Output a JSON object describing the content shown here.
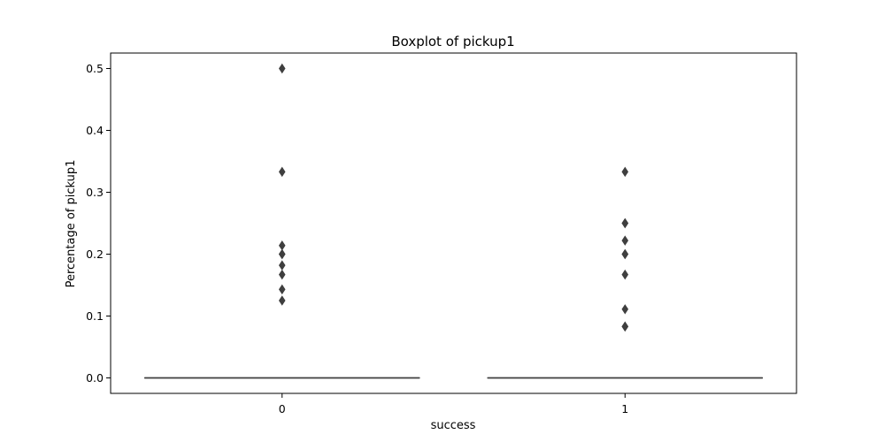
{
  "chart_data": {
    "type": "box",
    "title": "Boxplot of pickup1",
    "xlabel": "success",
    "ylabel": "Percentage of pickup1",
    "categories": [
      "0",
      "1"
    ],
    "ylim": [
      -0.025,
      0.525
    ],
    "yticks": [
      0.0,
      0.1,
      0.2,
      0.3,
      0.4,
      0.5
    ],
    "ytick_labels": [
      "0.0",
      "0.1",
      "0.2",
      "0.3",
      "0.4",
      "0.5"
    ],
    "grid": false,
    "boxes": [
      {
        "category": "0",
        "min": 0,
        "q1": 0,
        "median": 0,
        "q3": 0,
        "max": 0,
        "outliers": [
          0.5,
          0.333,
          0.214,
          0.2,
          0.2,
          0.182,
          0.167,
          0.143,
          0.125
        ]
      },
      {
        "category": "1",
        "min": 0,
        "q1": 0,
        "median": 0,
        "q3": 0,
        "max": 0,
        "outliers": [
          0.333,
          0.25,
          0.25,
          0.222,
          0.2,
          0.2,
          0.167,
          0.111,
          0.083,
          0.083
        ]
      }
    ],
    "colors": {
      "box_line": "#3f3f3f",
      "outlier": "#3f3f3f",
      "axes": "#000000"
    }
  }
}
